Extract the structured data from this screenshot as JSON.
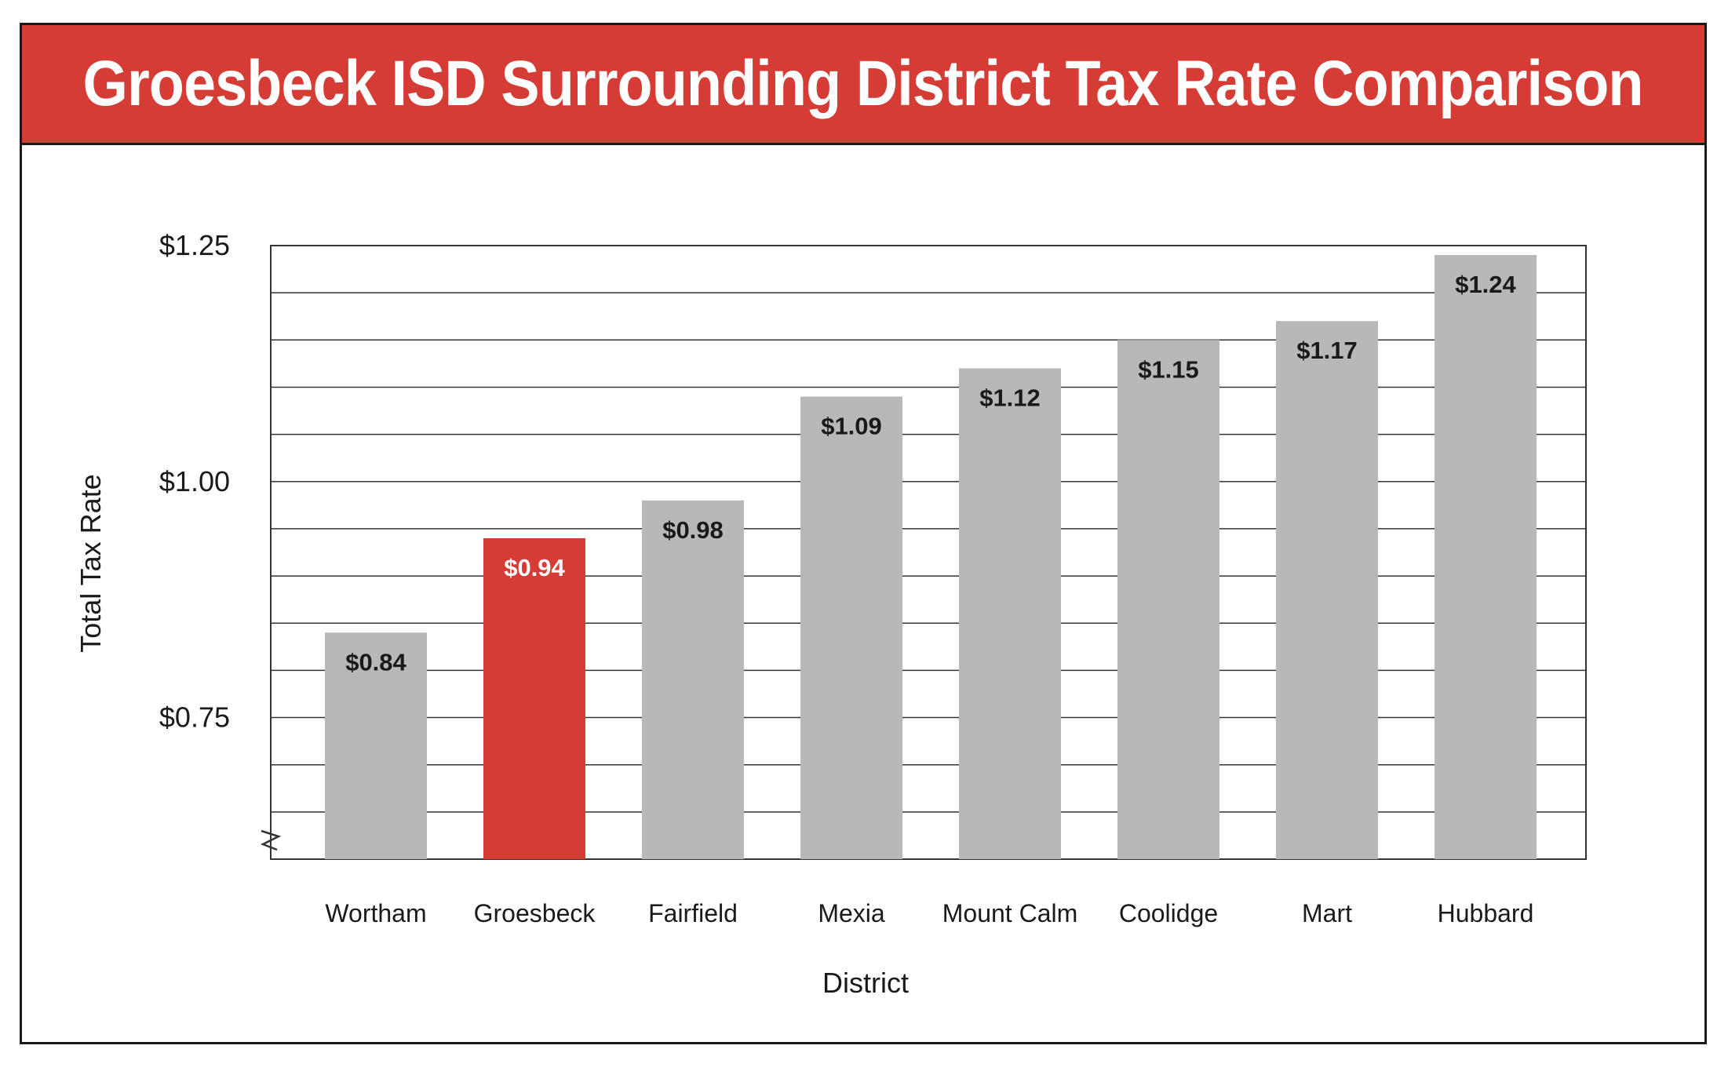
{
  "chart_data": {
    "type": "bar",
    "title": "Groesbeck ISD Surrounding District Tax Rate Comparison",
    "xlabel": "District",
    "ylabel": "Total Tax Rate",
    "categories": [
      "Wortham",
      "Groesbeck",
      "Fairfield",
      "Mexia",
      "Mount Calm",
      "Coolidge",
      "Mart",
      "Hubbard"
    ],
    "values": [
      0.84,
      0.94,
      0.98,
      1.09,
      1.12,
      1.15,
      1.17,
      1.24
    ],
    "data_labels": [
      "$0.84",
      "$0.94",
      "$0.98",
      "$1.09",
      "$1.12",
      "$1.15",
      "$1.17",
      "$1.24"
    ],
    "highlight_category": "Groesbeck",
    "ylim": [
      0.6,
      1.25
    ],
    "axis_break": true,
    "grid_step": 0.05,
    "yticks": [
      0.75,
      1.0,
      1.25
    ],
    "ytick_labels": [
      "$0.75",
      "$1.00",
      "$1.25"
    ],
    "grid": true,
    "colors": {
      "title_bar": "#d63c36",
      "highlight_bar": "#d63c36",
      "default_bar": "#b8b8b8",
      "grid": "#333333",
      "text": "#1a1a1a",
      "highlight_label": "#ffffff"
    }
  }
}
